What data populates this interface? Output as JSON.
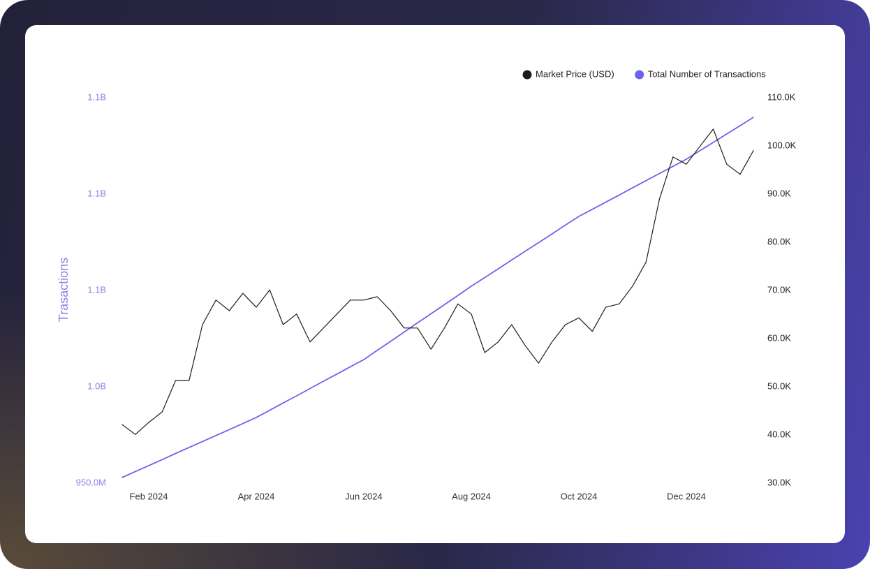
{
  "chart_data": {
    "type": "line",
    "y_label": "Trasactions",
    "categories": [
      null,
      null,
      "Feb 2024",
      null,
      null,
      null,
      null,
      null,
      null,
      null,
      "Apr 2024",
      null,
      null,
      null,
      null,
      null,
      null,
      null,
      "Jun 2024",
      null,
      null,
      null,
      null,
      null,
      null,
      null,
      "Aug 2024",
      null,
      null,
      null,
      null,
      null,
      null,
      null,
      "Oct 2024",
      null,
      null,
      null,
      null,
      null,
      null,
      null,
      "Dec 2024",
      null,
      null,
      null,
      null,
      null
    ],
    "series": [
      {
        "name": "Market Price (USD)",
        "color": "#1c1c1c",
        "axis": "y2",
        "values": [
          42200,
          40100,
          42600,
          44800,
          51300,
          51300,
          62900,
          68000,
          65800,
          69400,
          66500,
          70100,
          62900,
          65100,
          59300,
          62200,
          65100,
          68000,
          68000,
          68700,
          65800,
          62200,
          62200,
          57800,
          62200,
          67200,
          65100,
          57100,
          59300,
          62900,
          58600,
          54900,
          59300,
          62900,
          64300,
          61500,
          66500,
          67200,
          70900,
          75900,
          89000,
          97700,
          96200,
          99900,
          103500,
          96200,
          94100,
          99100
        ]
      },
      {
        "name": "Total Number of Transactions",
        "color": "#6c63ee",
        "values": [
          952900000,
          956000000,
          959100000,
          962200000,
          965400000,
          968500000,
          971600000,
          974700000,
          977800000,
          980900000,
          984100000,
          987800000,
          991600000,
          995300000,
          999100000,
          1002900000,
          1006600000,
          1010400000,
          1014100000,
          1018900000,
          1023600000,
          1028400000,
          1033200000,
          1037900000,
          1042600000,
          1047400000,
          1052200000,
          1056700000,
          1061200000,
          1065800000,
          1070300000,
          1074800000,
          1079300000,
          1083900000,
          1088400000,
          1092100000,
          1095800000,
          1099500000,
          1103300000,
          1107000000,
          1110700000,
          1114400000,
          1118100000,
          1122500000,
          1126800000,
          1131200000,
          1135500000,
          1139900000
        ]
      }
    ],
    "ylim": [
      950000000,
      1150000000
    ],
    "yticks": [
      {
        "value": 950000000,
        "label": "950.0M"
      },
      {
        "value": 1000000000,
        "label": "1.0B"
      },
      {
        "value": 1050000000,
        "label": "1.1B"
      },
      {
        "value": 1100000000,
        "label": "1.1B"
      },
      {
        "value": 1150000000,
        "label": "1.1B"
      }
    ],
    "y2lim": [
      30000,
      110000
    ],
    "y2ticks": [
      {
        "value": 30000,
        "label": "30.0K"
      },
      {
        "value": 40000,
        "label": "40.0K"
      },
      {
        "value": 50000,
        "label": "50.0K"
      },
      {
        "value": 60000,
        "label": "60.0K"
      },
      {
        "value": 70000,
        "label": "70.0K"
      },
      {
        "value": 80000,
        "label": "80.0K"
      },
      {
        "value": 90000,
        "label": "90.0K"
      },
      {
        "value": 100000,
        "label": "100.0K"
      },
      {
        "value": 110000,
        "label": "110.0K"
      }
    ],
    "yaxis_color": "#8a84e6",
    "grid": false,
    "legend": "top-right"
  }
}
